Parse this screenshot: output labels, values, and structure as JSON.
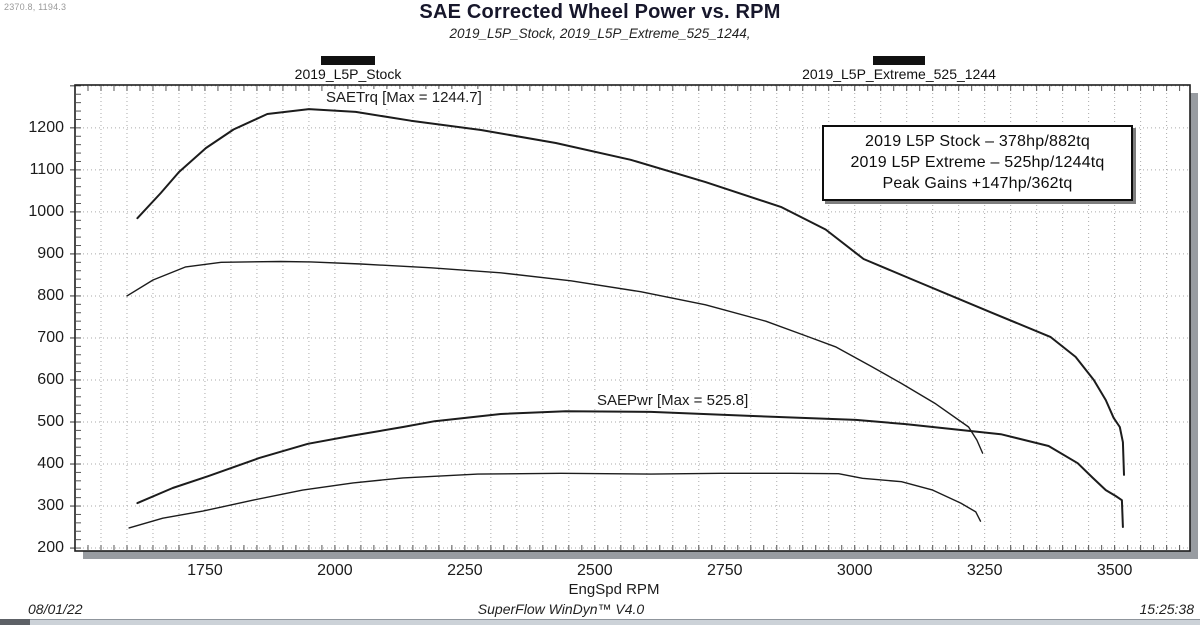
{
  "window": {
    "cursor_readout": "2370.8, 1194.3",
    "footer": {
      "date": "08/01/22",
      "app": "SuperFlow WinDyn™ V4.0",
      "time": "15:25:38"
    }
  },
  "header": {
    "title": "SAE Corrected Wheel Power vs. RPM",
    "subtitle": "2019_L5P_Stock, 2019_L5P_Extreme_525_1244,"
  },
  "legend": [
    {
      "label": "2019_L5P_Stock",
      "color": "#111111"
    },
    {
      "label": "2019_L5P_Extreme_525_1244",
      "color": "#111111"
    }
  ],
  "info_box": {
    "lines": [
      "2019 L5P Stock – 378hp/882tq",
      "2019 L5P Extreme – 525hp/1244tq",
      "Peak Gains +147hp/362tq"
    ]
  },
  "chart_data": {
    "type": "line",
    "title": "SAE Corrected Wheel Power vs. RPM",
    "subtitle": "2019_L5P_Stock, 2019_L5P_Extreme_525_1244,",
    "xlabel": "EngSpd RPM",
    "ylabel": "",
    "x_range": [
      1500,
      3645
    ],
    "y_range": [
      193,
      1302
    ],
    "x_ticks": [
      1750,
      2000,
      2250,
      2500,
      2750,
      3000,
      3250,
      3500
    ],
    "y_ticks": [
      200,
      300,
      400,
      500,
      600,
      700,
      800,
      900,
      1000,
      1100,
      1200
    ],
    "grid": {
      "style": "dotted",
      "x_step": 50,
      "y_step": 100,
      "x_minor_tick": 25,
      "y_minor_tick": 20
    },
    "legend_position": "top",
    "line_color": "#1c1c1c",
    "annotations": [
      {
        "text": "SAETrq [Max = 1244.7]",
        "channel": "SAETrq",
        "max": 1244.7
      },
      {
        "text": "SAEPwr [Max = 525.8]",
        "channel": "SAEPwr",
        "max": 525.8
      }
    ],
    "series": [
      {
        "name": "2019_L5P_Extreme_525_1244 SAETrq",
        "channel": "SAETrq",
        "run": "2019_L5P_Extreme_525_1244",
        "line_width": 2,
        "points": [
          [
            1620,
            985
          ],
          [
            1665,
            1045
          ],
          [
            1700,
            1095
          ],
          [
            1752,
            1152
          ],
          [
            1805,
            1196
          ],
          [
            1870,
            1233
          ],
          [
            1950,
            1244.7
          ],
          [
            2040,
            1238
          ],
          [
            2146,
            1217
          ],
          [
            2281,
            1195
          ],
          [
            2425,
            1164
          ],
          [
            2569,
            1124
          ],
          [
            2713,
            1071
          ],
          [
            2858,
            1012
          ],
          [
            2944,
            958
          ],
          [
            3017,
            888
          ],
          [
            3113,
            838
          ],
          [
            3260,
            762
          ],
          [
            3377,
            702
          ],
          [
            3425,
            655
          ],
          [
            3460,
            600
          ],
          [
            3483,
            552
          ],
          [
            3498,
            510
          ],
          [
            3510,
            488
          ],
          [
            3516,
            452
          ],
          [
            3518,
            374
          ]
        ]
      },
      {
        "name": "2019_L5P_Stock SAETrq",
        "channel": "SAETrq",
        "run": "2019_L5P_Stock",
        "line_width": 1.4,
        "points": [
          [
            1600,
            800
          ],
          [
            1650,
            838
          ],
          [
            1713,
            869
          ],
          [
            1781,
            880
          ],
          [
            1896,
            882
          ],
          [
            1954,
            881
          ],
          [
            2050,
            876
          ],
          [
            2185,
            867
          ],
          [
            2319,
            855
          ],
          [
            2454,
            836
          ],
          [
            2588,
            810
          ],
          [
            2713,
            779
          ],
          [
            2829,
            740
          ],
          [
            2906,
            705
          ],
          [
            2963,
            679
          ],
          [
            3031,
            633
          ],
          [
            3088,
            593
          ],
          [
            3156,
            543
          ],
          [
            3219,
            488
          ],
          [
            3235,
            457
          ],
          [
            3246,
            426
          ]
        ]
      },
      {
        "name": "2019_L5P_Extreme_525_1244 SAEPwr",
        "channel": "SAEPwr",
        "run": "2019_L5P_Extreme_525_1244",
        "line_width": 2,
        "points": [
          [
            1620,
            307
          ],
          [
            1688,
            343
          ],
          [
            1756,
            371
          ],
          [
            1854,
            414
          ],
          [
            1948,
            448
          ],
          [
            2031,
            467
          ],
          [
            2131,
            488
          ],
          [
            2192,
            502
          ],
          [
            2319,
            519
          ],
          [
            2444,
            525.8
          ],
          [
            2608,
            524
          ],
          [
            2810,
            514
          ],
          [
            3002,
            505
          ],
          [
            3098,
            495
          ],
          [
            3281,
            471
          ],
          [
            3373,
            443
          ],
          [
            3429,
            402
          ],
          [
            3458,
            367
          ],
          [
            3483,
            338
          ],
          [
            3502,
            324
          ],
          [
            3514,
            314
          ],
          [
            3516,
            250
          ]
        ]
      },
      {
        "name": "2019_L5P_Stock SAEPwr",
        "channel": "SAEPwr",
        "run": "2019_L5P_Stock",
        "line_width": 1.4,
        "points": [
          [
            1604,
            248
          ],
          [
            1669,
            271
          ],
          [
            1746,
            288
          ],
          [
            1842,
            314
          ],
          [
            1938,
            338
          ],
          [
            2035,
            355
          ],
          [
            2131,
            367
          ],
          [
            2275,
            376
          ],
          [
            2435,
            378
          ],
          [
            2608,
            376
          ],
          [
            2742,
            378
          ],
          [
            2877,
            378
          ],
          [
            2969,
            377
          ],
          [
            3015,
            366
          ],
          [
            3090,
            358
          ],
          [
            3150,
            338
          ],
          [
            3204,
            307
          ],
          [
            3233,
            286
          ],
          [
            3242,
            264
          ]
        ]
      }
    ]
  }
}
